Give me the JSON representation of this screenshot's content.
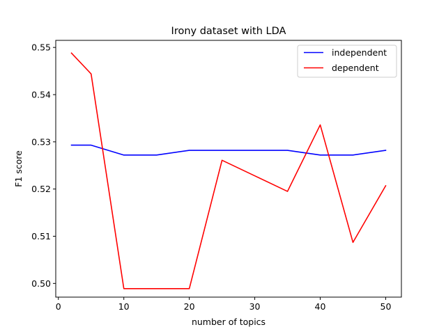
{
  "chart_data": {
    "type": "line",
    "title": "Irony dataset with LDA",
    "xlabel": "number of topics",
    "ylabel": "F1 score",
    "x": [
      2,
      5,
      10,
      15,
      20,
      25,
      30,
      35,
      40,
      45,
      50
    ],
    "series": [
      {
        "name": "independent",
        "color": "#0000ff",
        "values": [
          0.5293,
          0.5293,
          0.5272,
          0.5272,
          0.5282,
          0.5282,
          0.5282,
          0.5282,
          0.5272,
          0.5272,
          0.5282
        ]
      },
      {
        "name": "dependent",
        "color": "#ff0000",
        "values": [
          0.5488,
          0.5444,
          0.4989,
          0.4989,
          0.4989,
          0.5261,
          0.5228,
          0.5195,
          0.5336,
          0.5087,
          0.5207
        ]
      }
    ],
    "xlim": [
      -0.4,
      52.4
    ],
    "ylim": [
      0.4971,
      0.5515
    ],
    "xticks": [
      0,
      10,
      20,
      30,
      40,
      50
    ],
    "xtick_labels": [
      "0",
      "10",
      "20",
      "30",
      "40",
      "50"
    ],
    "yticks": [
      0.5,
      0.51,
      0.52,
      0.53,
      0.54,
      0.55
    ],
    "ytick_labels": [
      "0.50",
      "0.51",
      "0.52",
      "0.53",
      "0.54",
      "0.55"
    ],
    "legend_position": "top-right",
    "grid": false
  }
}
